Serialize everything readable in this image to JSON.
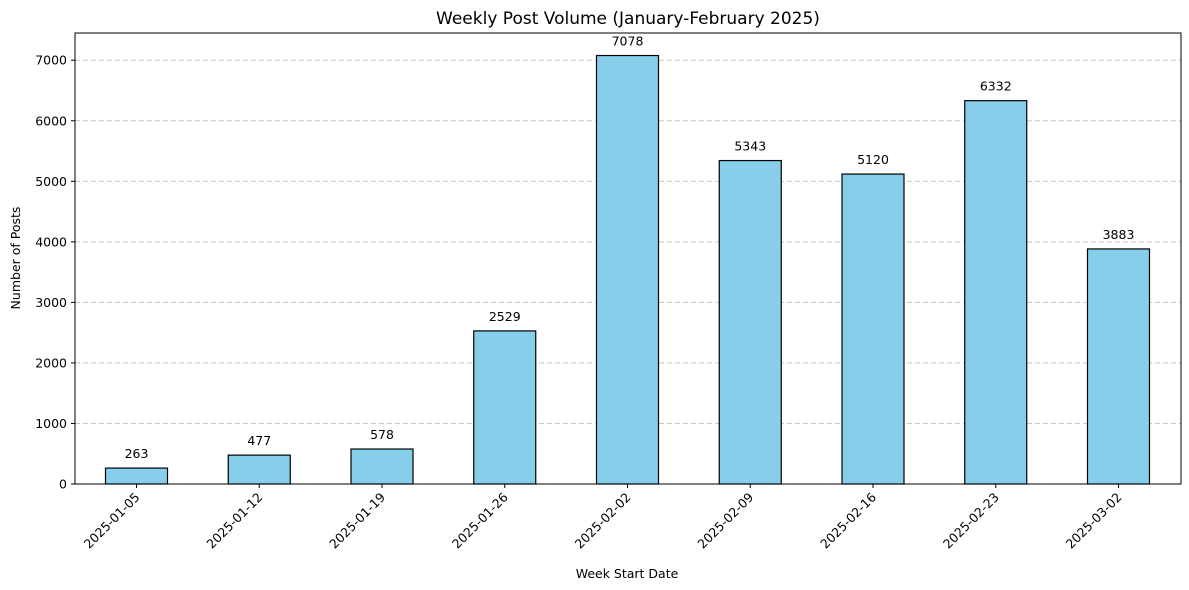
{
  "chart_data": {
    "type": "bar",
    "title": "Weekly Post Volume (January-February 2025)",
    "xlabel": "Week Start Date",
    "ylabel": "Number of Posts",
    "categories": [
      "2025-01-05",
      "2025-01-12",
      "2025-01-19",
      "2025-01-26",
      "2025-02-02",
      "2025-02-09",
      "2025-02-16",
      "2025-02-23",
      "2025-03-02"
    ],
    "values": [
      263,
      477,
      578,
      2529,
      7078,
      5343,
      5120,
      6332,
      3883
    ],
    "data_labels": [
      "263",
      "477",
      "578",
      "2529",
      "7078",
      "5343",
      "5120",
      "6332",
      "3883"
    ],
    "ylim": [
      0,
      7450
    ],
    "yticks": [
      0,
      1000,
      2000,
      3000,
      4000,
      5000,
      6000,
      7000
    ],
    "ytick_labels": [
      "0",
      "1000",
      "2000",
      "3000",
      "4000",
      "5000",
      "6000",
      "7000"
    ],
    "grid": "y-dashed",
    "colors": {
      "bar_fill": "#87ceeb",
      "bar_edge": "#000000",
      "grid": "#c8c8c8"
    }
  }
}
